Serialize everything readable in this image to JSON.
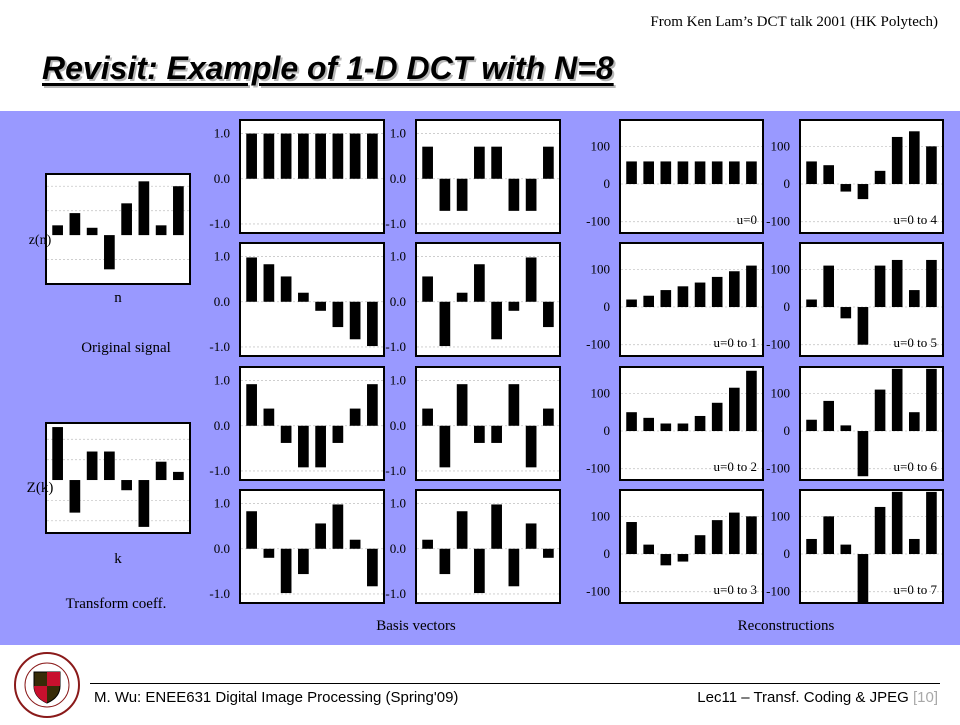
{
  "slide": {
    "credit": "From Ken Lam’s DCT talk 2001 (HK Polytech)",
    "title": "Revisit:  Example of 1-D DCT with N=8",
    "footer_left": "M. Wu: ENEE631 Digital Image Processing (Spring'09)",
    "footer_right": "Lec11 – Transf. Coding & JPEG",
    "page_number": "[10]",
    "seal_text": "UNIVERSITY OF MARYLAND",
    "colors": {
      "panel": "#9999ff",
      "bar": "#000000",
      "plot_bg": "#ffffff",
      "grid": "#c8c8c8"
    }
  },
  "labels": {
    "signal_axis": "z(n)",
    "signal_x": "n",
    "signal_caption": "Original signal",
    "coeff_axis": "Z(k)",
    "coeff_x": "k",
    "coeff_caption": "Transform coeff.",
    "basis_caption": "Basis vectors",
    "recon_caption": "Reconstructions"
  },
  "chart_data": [
    {
      "type": "bar",
      "role": "original-signal",
      "ylabel": "z(n)",
      "xlabel": "n",
      "values": [
        0.4,
        0.9,
        0.3,
        -1.4,
        1.3,
        2.2,
        0.4,
        2.0
      ],
      "ylim": [
        -2,
        2.5
      ]
    },
    {
      "type": "bar",
      "role": "transform-coefficients",
      "ylabel": "Z(k)",
      "xlabel": "k",
      "values": [
        2.6,
        -1.6,
        1.4,
        1.4,
        -0.5,
        -2.3,
        0.9,
        0.4
      ],
      "ylim": [
        -2.6,
        2.8
      ]
    },
    {
      "type": "bar",
      "role": "basis",
      "k": 0,
      "yticks": [
        "1.0",
        "0.0",
        "-1.0"
      ],
      "ylim": [
        -1.2,
        1.3
      ],
      "values": [
        1,
        1,
        1,
        1,
        1,
        1,
        1,
        1
      ]
    },
    {
      "type": "bar",
      "role": "basis",
      "k": 1,
      "yticks": [
        "1.0",
        "0.0",
        "-1.0"
      ],
      "ylim": [
        -1.2,
        1.3
      ],
      "values": [
        0.98,
        0.83,
        0.56,
        0.2,
        -0.2,
        -0.56,
        -0.83,
        -0.98
      ]
    },
    {
      "type": "bar",
      "role": "basis",
      "k": 2,
      "yticks": [
        "1.0",
        "0.0",
        "-1.0"
      ],
      "ylim": [
        -1.2,
        1.3
      ],
      "values": [
        0.92,
        0.38,
        -0.38,
        -0.92,
        -0.92,
        -0.38,
        0.38,
        0.92
      ]
    },
    {
      "type": "bar",
      "role": "basis",
      "k": 3,
      "yticks": [
        "1.0",
        "0.0",
        "-1.0"
      ],
      "ylim": [
        -1.2,
        1.3
      ],
      "values": [
        0.83,
        -0.2,
        -0.98,
        -0.56,
        0.56,
        0.98,
        0.2,
        -0.83
      ]
    },
    {
      "type": "bar",
      "role": "basis",
      "k": 4,
      "yticks": [
        "1.0",
        "0.0",
        "-1.0"
      ],
      "ylim": [
        -1.2,
        1.3
      ],
      "values": [
        0.71,
        -0.71,
        -0.71,
        0.71,
        0.71,
        -0.71,
        -0.71,
        0.71
      ]
    },
    {
      "type": "bar",
      "role": "basis",
      "k": 5,
      "yticks": [
        "1.0",
        "0.0",
        "-1.0"
      ],
      "ylim": [
        -1.2,
        1.3
      ],
      "values": [
        0.56,
        -0.98,
        0.2,
        0.83,
        -0.83,
        -0.2,
        0.98,
        -0.56
      ]
    },
    {
      "type": "bar",
      "role": "basis",
      "k": 6,
      "yticks": [
        "1.0",
        "0.0",
        "-1.0"
      ],
      "ylim": [
        -1.2,
        1.3
      ],
      "values": [
        0.38,
        -0.92,
        0.92,
        -0.38,
        -0.38,
        0.92,
        -0.92,
        0.38
      ]
    },
    {
      "type": "bar",
      "role": "basis",
      "k": 7,
      "yticks": [
        "1.0",
        "0.0",
        "-1.0"
      ],
      "ylim": [
        -1.2,
        1.3
      ],
      "values": [
        0.2,
        -0.56,
        0.83,
        -0.98,
        0.98,
        -0.83,
        0.56,
        -0.2
      ]
    },
    {
      "type": "bar",
      "role": "reconstruction",
      "label": "u=0",
      "yticks": [
        "100",
        "0",
        "-100"
      ],
      "ylim": [
        -130,
        170
      ],
      "values": [
        60,
        60,
        60,
        60,
        60,
        60,
        60,
        60
      ]
    },
    {
      "type": "bar",
      "role": "reconstruction",
      "label": "u=0 to 1",
      "yticks": [
        "100",
        "0",
        "-100"
      ],
      "ylim": [
        -130,
        170
      ],
      "values": [
        20,
        30,
        45,
        55,
        65,
        80,
        95,
        110
      ]
    },
    {
      "type": "bar",
      "role": "reconstruction",
      "label": "u=0 to 2",
      "yticks": [
        "100",
        "0",
        "-100"
      ],
      "ylim": [
        -130,
        170
      ],
      "values": [
        50,
        35,
        20,
        20,
        40,
        75,
        115,
        160
      ]
    },
    {
      "type": "bar",
      "role": "reconstruction",
      "label": "u=0 to 3",
      "yticks": [
        "100",
        "0",
        "-100"
      ],
      "ylim": [
        -130,
        170
      ],
      "values": [
        85,
        25,
        -30,
        -20,
        50,
        90,
        110,
        100
      ]
    },
    {
      "type": "bar",
      "role": "reconstruction",
      "label": "u=0 to 4",
      "yticks": [
        "100",
        "0",
        "-100"
      ],
      "ylim": [
        -130,
        170
      ],
      "values": [
        60,
        50,
        -20,
        -40,
        35,
        125,
        140,
        100
      ]
    },
    {
      "type": "bar",
      "role": "reconstruction",
      "label": "u=0 to 5",
      "yticks": [
        "100",
        "0",
        "-100"
      ],
      "ylim": [
        -130,
        170
      ],
      "values": [
        20,
        110,
        -30,
        -100,
        110,
        125,
        45,
        125
      ]
    },
    {
      "type": "bar",
      "role": "reconstruction",
      "label": "u=0 to 6",
      "yticks": [
        "100",
        "0",
        "-100"
      ],
      "ylim": [
        -130,
        170
      ],
      "values": [
        30,
        80,
        15,
        -120,
        110,
        165,
        50,
        165
      ]
    },
    {
      "type": "bar",
      "role": "reconstruction",
      "label": "u=0 to 7",
      "yticks": [
        "100",
        "0",
        "-100"
      ],
      "ylim": [
        -130,
        170
      ],
      "values": [
        40,
        100,
        25,
        -130,
        125,
        165,
        40,
        165
      ]
    }
  ]
}
